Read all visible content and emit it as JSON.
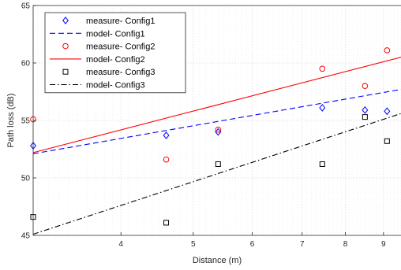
{
  "chart_data": {
    "type": "scatter",
    "title": "",
    "xlabel": "Distance (m)",
    "ylabel": "Path loss (dB)",
    "xscale": "log",
    "xlim": [
      3.05,
      9.5
    ],
    "ylim": [
      45,
      65
    ],
    "xticks": [
      4,
      5,
      6,
      7,
      8,
      9
    ],
    "yticks": [
      45,
      50,
      55,
      60,
      65
    ],
    "grid": true,
    "legend_position": "top-left",
    "series": [
      {
        "name": "measure- Config1",
        "kind": "marker",
        "marker": "diamond",
        "color": "#0000ff",
        "x": [
          3.05,
          4.6,
          5.4,
          7.45,
          8.5,
          9.1
        ],
        "y": [
          52.8,
          53.7,
          54.0,
          56.1,
          55.9,
          55.8
        ]
      },
      {
        "name": "model- Config1",
        "kind": "line",
        "dash": "dashed",
        "color": "#0000ff",
        "x": [
          3.05,
          9.5
        ],
        "y": [
          52.1,
          57.7
        ]
      },
      {
        "name": "measure- Config2",
        "kind": "marker",
        "marker": "circle",
        "color": "#ff0000",
        "x": [
          3.05,
          4.6,
          5.4,
          7.45,
          8.5,
          9.1
        ],
        "y": [
          55.1,
          51.6,
          54.2,
          59.5,
          58.0,
          61.1
        ]
      },
      {
        "name": "model- Config2",
        "kind": "line",
        "dash": "solid",
        "color": "#ff0000",
        "x": [
          3.05,
          9.5
        ],
        "y": [
          52.2,
          60.5
        ]
      },
      {
        "name": "measure- Config3",
        "kind": "marker",
        "marker": "square",
        "color": "#000000",
        "x": [
          3.05,
          4.6,
          5.4,
          7.45,
          8.5,
          9.1
        ],
        "y": [
          46.6,
          46.1,
          51.2,
          51.2,
          55.3,
          53.2
        ]
      },
      {
        "name": "model- Config3",
        "kind": "line",
        "dash": "dashdot",
        "color": "#000000",
        "x": [
          3.05,
          9.5
        ],
        "y": [
          45.1,
          55.6
        ]
      }
    ]
  }
}
